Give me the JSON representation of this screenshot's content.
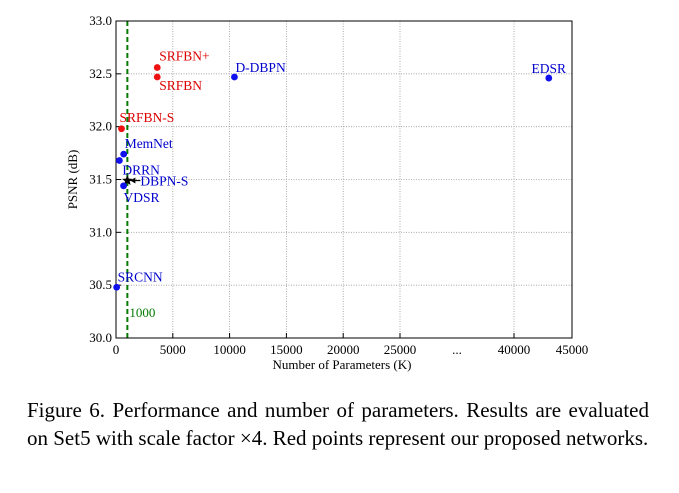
{
  "chart_data": {
    "type": "scatter",
    "xlabel": "Number of Parameters (K)",
    "ylabel": "PSNR (dB)",
    "ylim": [
      30.0,
      33.0
    ],
    "x_ticks": [
      "0",
      "5000",
      "10000",
      "15000",
      "20000",
      "25000",
      "...",
      "40000",
      "45000"
    ],
    "x_tick_values": [
      0,
      5000,
      10000,
      15000,
      20000,
      25000,
      null,
      40000,
      45000
    ],
    "y_ticks": [
      "30.0",
      "30.5",
      "31.0",
      "31.5",
      "32.0",
      "32.5",
      "33.0"
    ],
    "y_tick_values": [
      30.0,
      30.5,
      31.0,
      31.5,
      32.0,
      32.5,
      33.0
    ],
    "grid": true,
    "reference_line": {
      "x": 1000,
      "label": "1000",
      "color": "#007a00",
      "style": "dashed"
    },
    "colors": {
      "ours": "#ee1111",
      "others": "#1111ee",
      "text_ours": "#dd0000",
      "text_others": "#0000cc"
    },
    "points": [
      {
        "name": "SRFBN+",
        "x": 3631,
        "y": 32.56,
        "group": "ours"
      },
      {
        "name": "SRFBN",
        "x": 3631,
        "y": 32.47,
        "group": "ours"
      },
      {
        "name": "SRFBN-S",
        "x": 483,
        "y": 31.98,
        "group": "ours"
      },
      {
        "name": "D-DBPN",
        "x": 10426,
        "y": 32.47,
        "group": "others"
      },
      {
        "name": "EDSR",
        "x": 43000,
        "y": 32.46,
        "group": "others"
      },
      {
        "name": "MemNet",
        "x": 677,
        "y": 31.74,
        "group": "others"
      },
      {
        "name": "DRRN",
        "x": 297,
        "y": 31.68,
        "group": "others"
      },
      {
        "name": "DBPN-S",
        "x": 1000,
        "y": 31.49,
        "group": "others",
        "marker": "star"
      },
      {
        "name": "VDSR",
        "x": 665,
        "y": 31.44,
        "group": "others"
      },
      {
        "name": "SRCNN",
        "x": 57,
        "y": 30.48,
        "group": "others"
      }
    ]
  },
  "caption": "Figure 6. Performance and number of parameters.  Results are evaluated on Set5 with scale factor ×4. Red points represent our proposed networks."
}
